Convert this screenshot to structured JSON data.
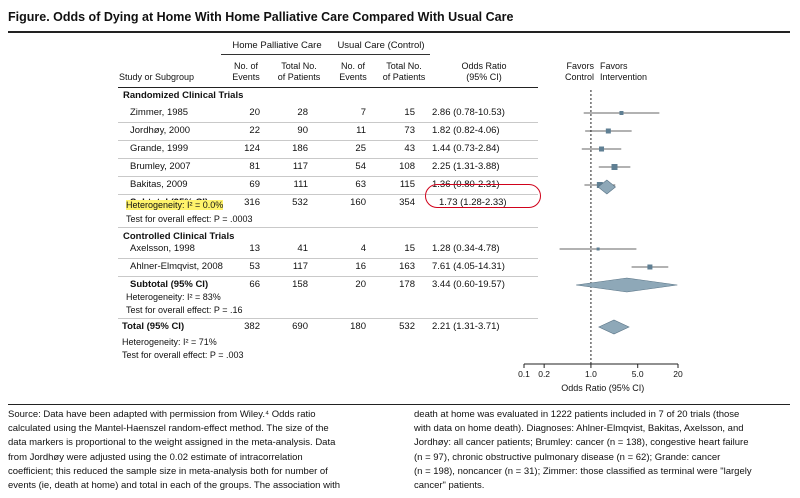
{
  "figure": {
    "title": "Figure. Odds of Dying at Home With Home Palliative Care Compared With Usual Care"
  },
  "header": {
    "group_intervention": "Home Palliative Care",
    "group_control": "Usual Care (Control)",
    "col_study": "Study or Subgroup",
    "col_events_1": [
      "No. of",
      "Events"
    ],
    "col_total_1": [
      "Total No.",
      "of Patients"
    ],
    "col_events_2": [
      "No. of",
      "Events"
    ],
    "col_total_2": [
      "Total No.",
      "of Patients"
    ],
    "col_or": [
      "Odds Ratio",
      "(95% CI)"
    ],
    "favors_control": [
      "Favors",
      "Control"
    ],
    "favors_intervention": [
      "Favors",
      "Intervention"
    ]
  },
  "sections": [
    {
      "label": "Randomized Clinical Trials",
      "studies": [
        {
          "name": "Zimmer, 1985",
          "ev1": "20",
          "tot1": "28",
          "ev2": "7",
          "tot2": "15",
          "or_text": "2.86 (0.78-10.53)",
          "or": 2.86,
          "lo": 0.78,
          "hi": 10.53,
          "w": 4
        },
        {
          "name": "Jordhøy, 2000",
          "ev1": "22",
          "tot1": "90",
          "ev2": "11",
          "tot2": "73",
          "or_text": "1.82 (0.82-4.06)",
          "or": 1.82,
          "lo": 0.82,
          "hi": 4.06,
          "w": 5
        },
        {
          "name": "Grande, 1999",
          "ev1": "124",
          "tot1": "186",
          "ev2": "25",
          "tot2": "43",
          "or_text": "1.44 (0.73-2.84)",
          "or": 1.44,
          "lo": 0.73,
          "hi": 2.84,
          "w": 5
        },
        {
          "name": "Brumley, 2007",
          "ev1": "81",
          "tot1": "117",
          "ev2": "54",
          "tot2": "108",
          "or_text": "2.25 (1.31-3.88)",
          "or": 2.25,
          "lo": 1.31,
          "hi": 3.88,
          "w": 6
        },
        {
          "name": "Bakitas, 2009",
          "ev1": "69",
          "tot1": "111",
          "ev2": "63",
          "tot2": "115",
          "or_text": "1.36 (0.80-2.31)",
          "or": 1.36,
          "lo": 0.8,
          "hi": 2.31,
          "w": 6
        }
      ],
      "subtotal": {
        "label": "Subtotal (95% CI)",
        "ev1": "316",
        "tot1": "532",
        "ev2": "160",
        "tot2": "354",
        "or_text": "1.73 (1.28-2.33)",
        "or": 1.73,
        "lo": 1.28,
        "hi": 2.33
      },
      "heterogeneity": "Heterogeneity: I² = 0.0%",
      "overall_effect": "Test for overall effect: P = .0003"
    },
    {
      "label": "Controlled Clinical Trials",
      "studies": [
        {
          "name": "Axelsson, 1998",
          "ev1": "13",
          "tot1": "41",
          "ev2": "4",
          "tot2": "15",
          "or_text": "1.28 (0.34-4.78)",
          "or": 1.28,
          "lo": 0.34,
          "hi": 4.78,
          "w": 3
        },
        {
          "name": "Ahlner-Elmqvist, 2008",
          "ev1": "53",
          "tot1": "117",
          "ev2": "16",
          "tot2": "163",
          "or_text": "7.61 (4.05-14.31)",
          "or": 7.61,
          "lo": 4.05,
          "hi": 14.31,
          "w": 5
        }
      ],
      "subtotal": {
        "label": "Subtotal (95% CI)",
        "ev1": "66",
        "tot1": "158",
        "ev2": "20",
        "tot2": "178",
        "or_text": "3.44 (0.60-19.57)",
        "or": 3.44,
        "lo": 0.6,
        "hi": 19.57
      },
      "heterogeneity": "Heterogeneity: I² = 83%",
      "overall_effect": "Test for overall effect: P = .16"
    }
  ],
  "total": {
    "label": "Total (95% CI)",
    "ev1": "382",
    "tot1": "690",
    "ev2": "180",
    "tot2": "532",
    "or_text": "2.21 (1.31-3.71)",
    "or": 2.21,
    "lo": 1.31,
    "hi": 3.71
  },
  "total_heterogeneity": "Heterogeneity: I² = 71%",
  "total_overall_effect": "Test for overall effect: P = .003",
  "chart_data": {
    "type": "forest",
    "xlabel": "Odds Ratio (95% CI)",
    "xscale": "log",
    "xlim": [
      0.1,
      20
    ],
    "xticks": [
      0.1,
      0.2,
      1.0,
      5.0,
      20
    ],
    "xtick_labels": [
      "0.1",
      "0.2",
      "1.0",
      "5.0",
      "20"
    ],
    "reference_line": 1.0,
    "marker_color": "#5f7f93",
    "diamond_color": "#8ea8b8"
  },
  "footnote": {
    "left": [
      "Source: Data have been adapted with permission from Wiley.⁴ Odds ratio",
      "calculated using the Mantel-Haenszel random-effect method. The size of the",
      "data markers is proportional to the weight assigned in the meta-analysis. Data",
      "from Jordhøy were adjusted using the 0.02 estimate of intracorrelation",
      "coefficient; this reduced the sample size in meta-analysis both for number of",
      "events (ie, death at home) and total in each of the groups. The association with"
    ],
    "right": [
      "death at home was evaluated in 1222 patients included in 7 of 20 trials (those",
      "with data on home death). Diagnoses: Ahlner-Elmqvist, Bakitas, Axelsson, and",
      "Jordhøy: all cancer patients; Brumley: cancer (n = 138), congestive heart failure",
      "(n = 97), chronic obstructive pulmonary disease (n = 62); Grande: cancer",
      "(n = 198), noncancer (n = 31); Zimmer: those classified as terminal were \"largely",
      "cancer\" patients."
    ]
  }
}
